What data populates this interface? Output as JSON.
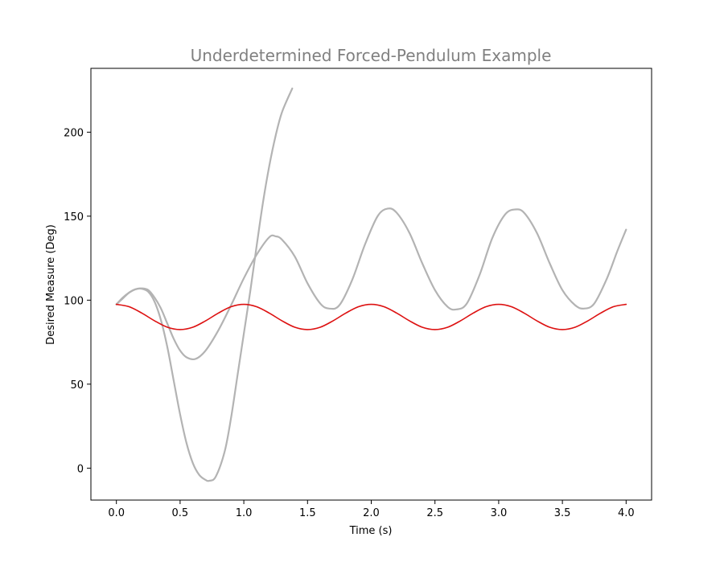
{
  "chart_data": {
    "type": "line",
    "title": "Underdetermined Forced-Pendulum Example",
    "xlabel": "Time (s)",
    "ylabel": "Desired Measure (Deg)",
    "xlim": [
      -0.2,
      4.2
    ],
    "ylim": [
      -19,
      238
    ],
    "x_ticks": [
      0.0,
      0.5,
      1.0,
      1.5,
      2.0,
      2.5,
      3.0,
      3.5,
      4.0
    ],
    "x_tick_labels": [
      "0.0",
      "0.5",
      "1.0",
      "1.5",
      "2.0",
      "2.5",
      "3.0",
      "3.5",
      "4.0"
    ],
    "y_ticks": [
      0,
      50,
      100,
      150,
      200
    ],
    "y_tick_labels": [
      "0",
      "50",
      "100",
      "150",
      "200"
    ],
    "grid": false,
    "legend": "none",
    "colors": {
      "title": "#808080",
      "reference": "#dd1111",
      "trial": "#b3b3b3",
      "axes": "#000000"
    },
    "series": [
      {
        "color": "#b3b3b3",
        "points": [
          [
            0.0,
            97.5
          ],
          [
            0.05,
            101
          ],
          [
            0.1,
            104.5
          ],
          [
            0.15,
            106.5
          ],
          [
            0.2,
            106.8
          ],
          [
            0.25,
            105
          ],
          [
            0.3,
            99
          ],
          [
            0.35,
            88
          ],
          [
            0.4,
            72
          ],
          [
            0.45,
            52
          ],
          [
            0.5,
            32
          ],
          [
            0.55,
            15
          ],
          [
            0.6,
            3
          ],
          [
            0.65,
            -4
          ],
          [
            0.7,
            -7
          ],
          [
            0.73,
            -7.5
          ],
          [
            0.78,
            -5
          ],
          [
            0.85,
            10
          ],
          [
            0.9,
            30
          ],
          [
            0.95,
            55
          ],
          [
            1.0,
            80
          ],
          [
            1.05,
            105
          ],
          [
            1.1,
            132
          ],
          [
            1.15,
            158
          ],
          [
            1.2,
            180
          ],
          [
            1.25,
            198
          ],
          [
            1.3,
            212
          ],
          [
            1.38,
            226
          ]
        ]
      },
      {
        "color": "#b3b3b3",
        "points": [
          [
            0.0,
            97.5
          ],
          [
            0.05,
            101.5
          ],
          [
            0.1,
            104.5
          ],
          [
            0.15,
            106.5
          ],
          [
            0.2,
            107
          ],
          [
            0.25,
            106
          ],
          [
            0.3,
            101.5
          ],
          [
            0.35,
            95
          ],
          [
            0.4,
            86
          ],
          [
            0.45,
            77
          ],
          [
            0.5,
            70
          ],
          [
            0.55,
            66
          ],
          [
            0.62,
            65
          ],
          [
            0.7,
            70
          ],
          [
            0.8,
            82
          ],
          [
            0.9,
            97
          ],
          [
            1.0,
            113
          ],
          [
            1.1,
            127
          ],
          [
            1.2,
            137.5
          ],
          [
            1.25,
            138
          ],
          [
            1.3,
            136
          ],
          [
            1.4,
            126
          ],
          [
            1.5,
            110
          ],
          [
            1.6,
            98
          ],
          [
            1.67,
            95
          ],
          [
            1.75,
            97
          ],
          [
            1.85,
            112
          ],
          [
            1.95,
            133
          ],
          [
            2.05,
            150
          ],
          [
            2.13,
            154.5
          ],
          [
            2.2,
            152
          ],
          [
            2.3,
            140
          ],
          [
            2.4,
            122
          ],
          [
            2.5,
            106
          ],
          [
            2.6,
            96
          ],
          [
            2.67,
            94.5
          ],
          [
            2.75,
            98
          ],
          [
            2.85,
            115
          ],
          [
            2.95,
            137
          ],
          [
            3.05,
            151
          ],
          [
            3.13,
            154
          ],
          [
            3.2,
            152
          ],
          [
            3.3,
            140
          ],
          [
            3.4,
            122
          ],
          [
            3.5,
            106
          ],
          [
            3.6,
            97
          ],
          [
            3.67,
            95
          ],
          [
            3.75,
            98
          ],
          [
            3.85,
            113
          ],
          [
            3.93,
            129
          ],
          [
            4.0,
            142
          ]
        ]
      },
      {
        "color": "#dd1111",
        "function": "90 + 7.5*cos(2*pi*t)",
        "points": [
          [
            0.0,
            97.5
          ],
          [
            0.1,
            96.1
          ],
          [
            0.2,
            92.3
          ],
          [
            0.3,
            87.7
          ],
          [
            0.4,
            83.9
          ],
          [
            0.5,
            82.5
          ],
          [
            0.6,
            83.9
          ],
          [
            0.7,
            87.7
          ],
          [
            0.8,
            92.3
          ],
          [
            0.9,
            96.1
          ],
          [
            1.0,
            97.5
          ],
          [
            1.1,
            96.1
          ],
          [
            1.2,
            92.3
          ],
          [
            1.3,
            87.7
          ],
          [
            1.4,
            83.9
          ],
          [
            1.5,
            82.5
          ],
          [
            1.6,
            83.9
          ],
          [
            1.7,
            87.7
          ],
          [
            1.8,
            92.3
          ],
          [
            1.9,
            96.1
          ],
          [
            2.0,
            97.5
          ],
          [
            2.1,
            96.1
          ],
          [
            2.2,
            92.3
          ],
          [
            2.3,
            87.7
          ],
          [
            2.4,
            83.9
          ],
          [
            2.5,
            82.5
          ],
          [
            2.6,
            83.9
          ],
          [
            2.7,
            87.7
          ],
          [
            2.8,
            92.3
          ],
          [
            2.9,
            96.1
          ],
          [
            3.0,
            97.5
          ],
          [
            3.1,
            96.1
          ],
          [
            3.2,
            92.3
          ],
          [
            3.3,
            87.7
          ],
          [
            3.4,
            83.9
          ],
          [
            3.5,
            82.5
          ],
          [
            3.6,
            83.9
          ],
          [
            3.7,
            87.7
          ],
          [
            3.8,
            92.3
          ],
          [
            3.9,
            96.1
          ],
          [
            4.0,
            97.5
          ]
        ]
      }
    ]
  }
}
